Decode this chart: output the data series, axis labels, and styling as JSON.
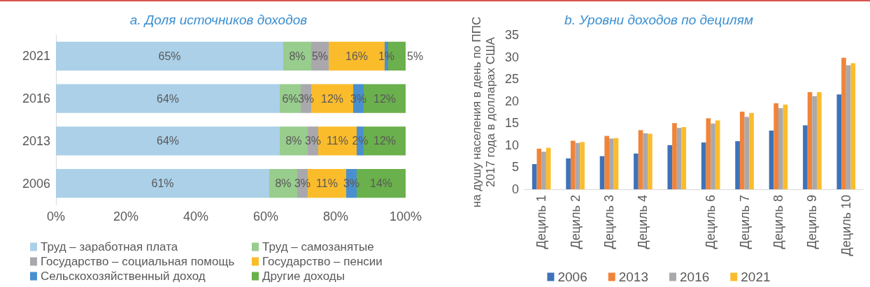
{
  "chart_data": [
    {
      "type": "bar",
      "title": "a. Доля источников доходов",
      "orientation": "horizontal",
      "stacked": true,
      "legend": "bottom",
      "grid": false,
      "categories": [
        "2021",
        "2016",
        "2013",
        "2006"
      ],
      "xlim": [
        0,
        100
      ],
      "xticks": [
        {
          "value": 0,
          "label": "0%"
        },
        {
          "value": 20,
          "label": "20%"
        },
        {
          "value": 40,
          "label": "40%"
        },
        {
          "value": 60,
          "label": "60%"
        },
        {
          "value": 80,
          "label": "80%"
        },
        {
          "value": 100,
          "label": "100%"
        }
      ],
      "series": [
        {
          "name": "Труд – заработная плата",
          "color": "#abd0e8",
          "values": [
            65,
            64,
            64,
            61
          ],
          "value_labels": [
            "65%",
            "64%",
            "64%",
            "61%"
          ]
        },
        {
          "name": "Труд – самозанятые",
          "color": "#98cd8d",
          "values": [
            8,
            6,
            8,
            8
          ],
          "value_labels": [
            "8%",
            "6%",
            "8%",
            "8%"
          ]
        },
        {
          "name": "Государство – социальная помощь",
          "color": "#a9a9ad",
          "values": [
            5,
            3,
            3,
            3
          ],
          "value_labels": [
            "5%",
            "3%",
            "3%",
            "3%"
          ]
        },
        {
          "name": "Государство – пенсии",
          "color": "#fbbc2c",
          "values": [
            16,
            12,
            11,
            11
          ],
          "value_labels": [
            "16%",
            "12%",
            "11%",
            "11%"
          ]
        },
        {
          "name": "Сельскохозяйственный доход",
          "color": "#4a90d0",
          "values": [
            1,
            3,
            2,
            3
          ],
          "value_labels": [
            "1%",
            "3%",
            "2%",
            "3%"
          ]
        },
        {
          "name": "Другие доходы",
          "color": "#6ab04c",
          "values": [
            5,
            12,
            12,
            14
          ],
          "value_labels": [
            "5%",
            "12%",
            "12%",
            "14%"
          ]
        }
      ]
    },
    {
      "type": "bar",
      "title": "b. Уровни доходов по децилям",
      "ylabel": "на душу населения в день по ППС\n2017 года в долларах США",
      "legend": "bottom",
      "grid": false,
      "categories": [
        "Дециль 1",
        "Дециль 2",
        "Дециль 3",
        "Дециль 4",
        null,
        "Дециль 6",
        "Дециль 7",
        "Дециль 8",
        "Дециль 9",
        "Дециль 10"
      ],
      "ylim": [
        0,
        35
      ],
      "yticks": [
        0,
        5,
        10,
        15,
        20,
        25,
        30,
        35
      ],
      "series": [
        {
          "name": "2006",
          "color": "#3e72b8",
          "values": [
            5.7,
            7.0,
            7.5,
            8.1,
            10.0,
            10.6,
            10.9,
            13.3,
            14.5,
            21.5
          ]
        },
        {
          "name": "2013",
          "color": "#f0843a",
          "values": [
            9.2,
            11.0,
            12.1,
            13.4,
            15.0,
            16.1,
            17.6,
            19.5,
            22.0,
            29.8
          ]
        },
        {
          "name": "2016",
          "color": "#a9a9ad",
          "values": [
            8.5,
            10.5,
            11.5,
            12.7,
            13.9,
            14.9,
            16.4,
            18.4,
            21.1,
            28.1
          ]
        },
        {
          "name": "2021",
          "color": "#fbbc2c",
          "values": [
            9.4,
            10.7,
            11.6,
            12.6,
            14.1,
            15.6,
            17.3,
            19.2,
            22.0,
            28.6
          ]
        }
      ]
    }
  ]
}
